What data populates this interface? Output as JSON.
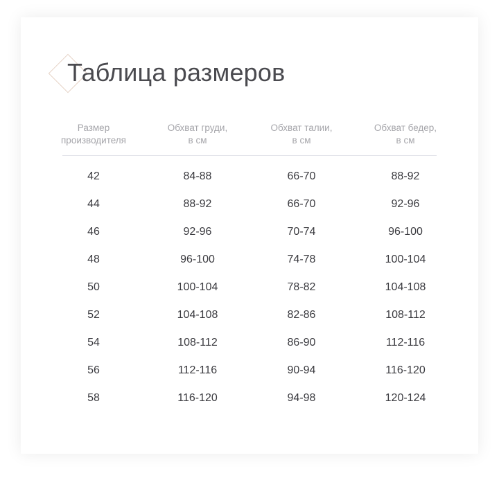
{
  "title": "Таблица размеров",
  "headers": [
    "Размер\nпроизводителя",
    "Обхват груди,\nв см",
    "Обхват талии,\nв см",
    "Обхват бедер,\nв см"
  ],
  "rows": [
    [
      "42",
      "84-88",
      "66-70",
      "88-92"
    ],
    [
      "44",
      "88-92",
      "66-70",
      "92-96"
    ],
    [
      "46",
      "92-96",
      "70-74",
      "96-100"
    ],
    [
      "48",
      "96-100",
      "74-78",
      "100-104"
    ],
    [
      "50",
      "100-104",
      "78-82",
      "104-108"
    ],
    [
      "52",
      "104-108",
      "82-86",
      "108-112"
    ],
    [
      "54",
      "108-112",
      "86-90",
      "112-116"
    ],
    [
      "56",
      "112-116",
      "90-94",
      "116-120"
    ],
    [
      "58",
      "116-120",
      "94-98",
      "120-124"
    ]
  ],
  "colors": {
    "accent": "#e6d3c6",
    "text": "#3a3a3f",
    "header": "#a5a5aa"
  }
}
